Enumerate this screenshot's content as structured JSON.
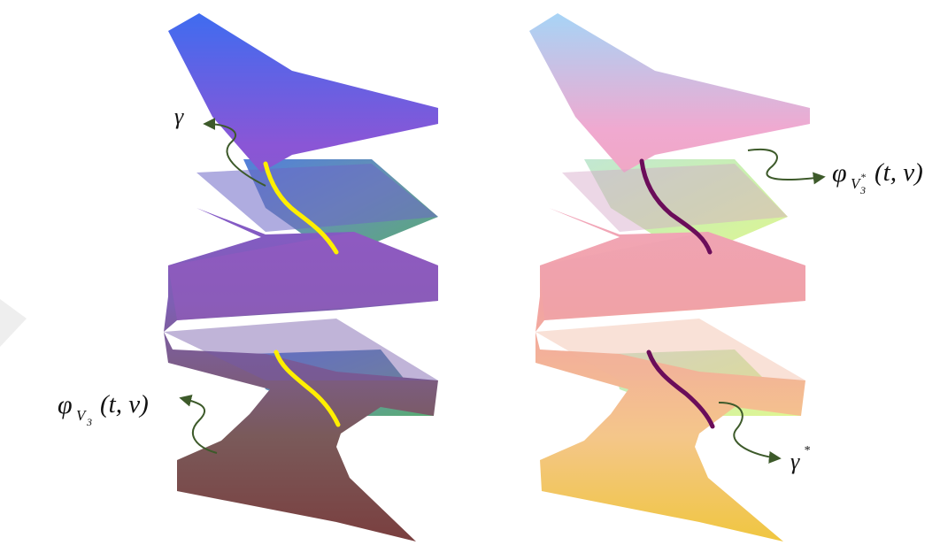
{
  "labels": {
    "gamma": "γ",
    "gamma_star_base": "γ",
    "gamma_star_sup": "*",
    "phi_left_symbol": "φ",
    "phi_left_sub": "V",
    "phi_left_subsub": "3",
    "phi_left_args": "(t, v)",
    "phi_right_symbol": "φ",
    "phi_right_sub": "V",
    "phi_right_subsub": "3",
    "phi_right_subsup": "*",
    "phi_right_args": "(t, v)"
  },
  "colors": {
    "left_surface_top": "#3f6cf0",
    "left_surface_mid": "#8a56d6",
    "left_surface_bottom": "#7a3f3f",
    "right_surface_top": "#a7d4f6",
    "right_surface_mid": "#f0a9d0",
    "right_surface_bottom": "#f0c640",
    "left_curve": "#ffef00",
    "right_curve": "#6b0d5a",
    "arrow": "#3d5a2a",
    "watermark": "#eeeeee"
  }
}
